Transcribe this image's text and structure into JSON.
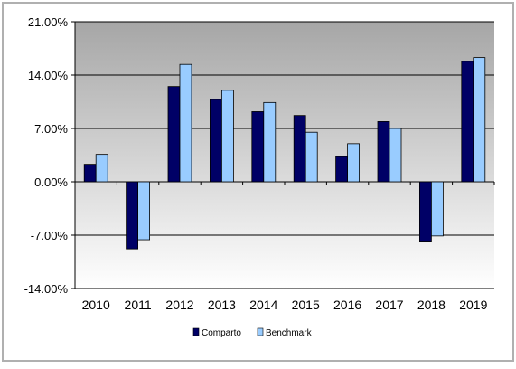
{
  "chart_data": {
    "type": "bar",
    "categories": [
      "2010",
      "2011",
      "2012",
      "2013",
      "2014",
      "2015",
      "2016",
      "2017",
      "2018",
      "2019"
    ],
    "series": [
      {
        "name": "Comparto",
        "values": [
          2.3,
          -8.8,
          12.5,
          10.8,
          9.2,
          8.7,
          3.3,
          7.9,
          -7.9,
          15.8
        ],
        "color": "#000066"
      },
      {
        "name": "Benchmark",
        "values": [
          3.6,
          -7.6,
          15.4,
          12.0,
          10.4,
          6.5,
          5.0,
          7.0,
          -7.1,
          16.3
        ],
        "color": "#99ccff"
      }
    ],
    "ylim": [
      -14,
      21
    ],
    "yticks": [
      -14,
      -7,
      0,
      7,
      14,
      21
    ],
    "ytick_labels": [
      "-14.00%",
      "-7.00%",
      "0.00%",
      "7.00%",
      "14.00%",
      "21.00%"
    ],
    "title": "",
    "xlabel": "",
    "ylabel": "",
    "grid": true,
    "legend_position": "bottom-center",
    "colors": {
      "plot_top": "#a6a6a6",
      "plot_bottom": "#ffffff",
      "frame_border": "#b0b0b0",
      "gridline": "#000000"
    }
  }
}
